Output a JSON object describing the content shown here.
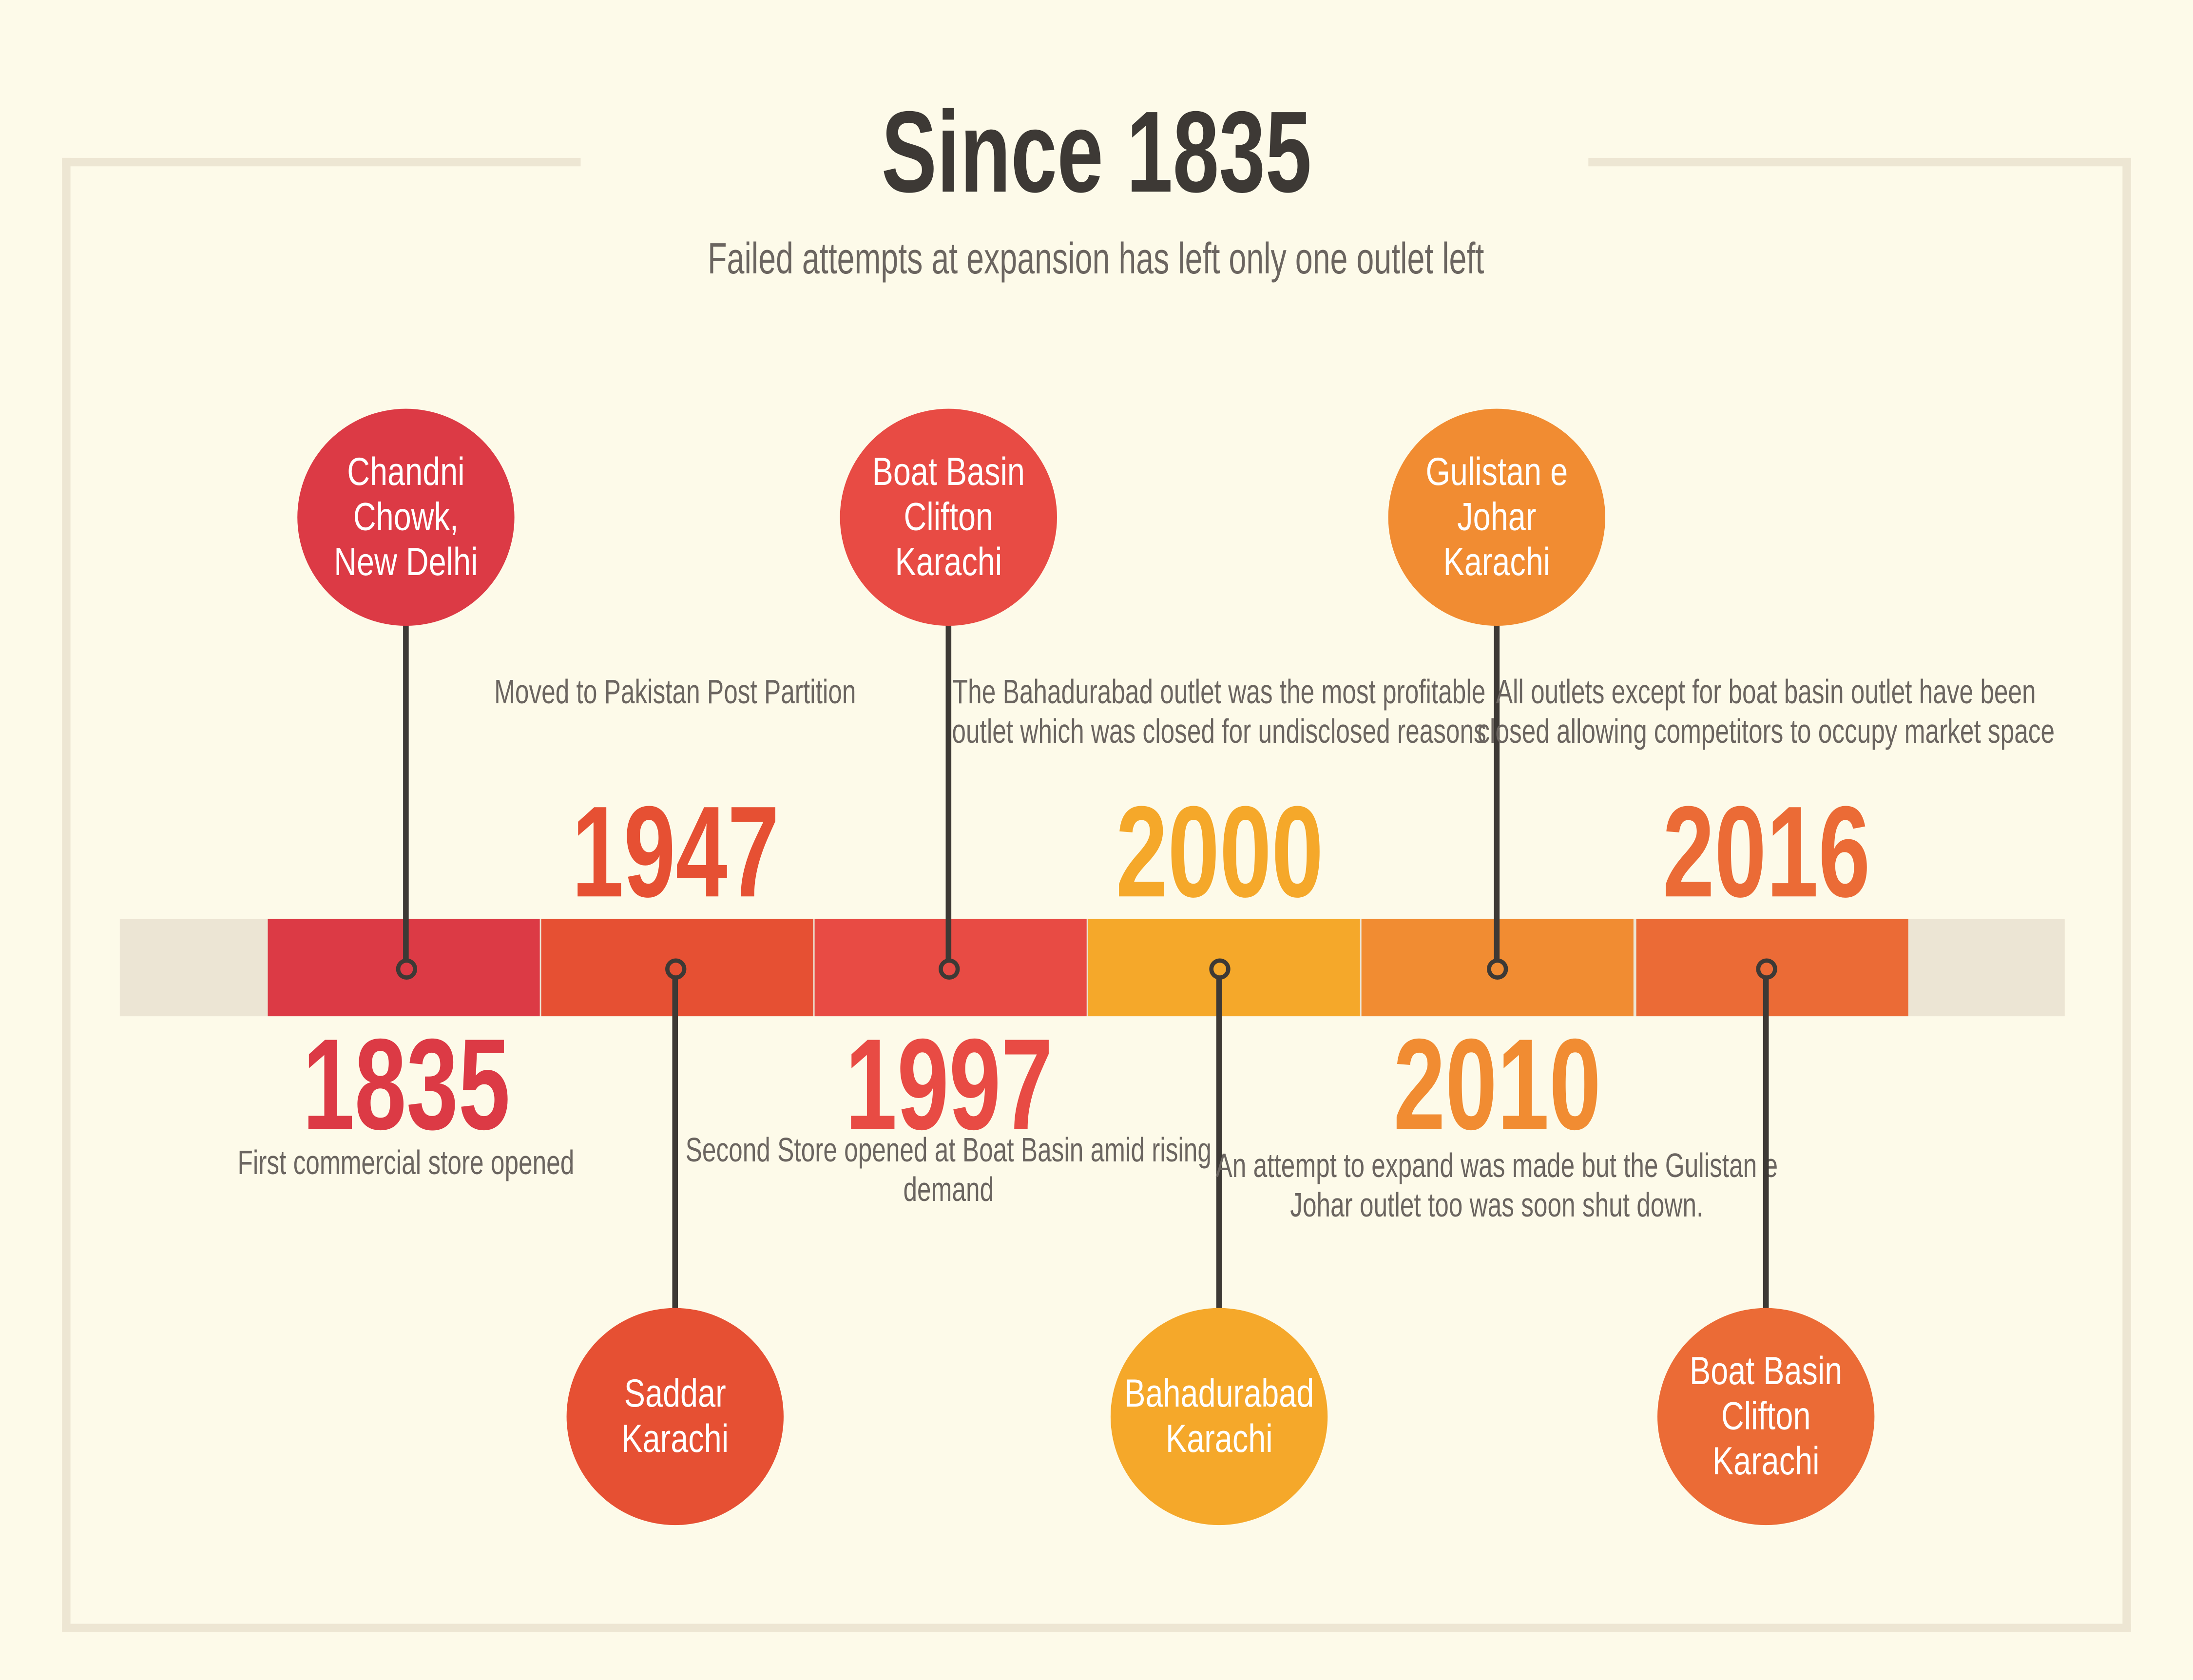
{
  "title": "Since 1835",
  "subtitle": "Failed attempts at expansion has left only one outlet left",
  "colors": {
    "background": "#fdfae9",
    "frame": "#ede6d3",
    "bar_track": "#ece5d4",
    "text_dark": "#3d3935",
    "text_muted": "#6b6560"
  },
  "events": [
    {
      "year": "1835",
      "location": "Chandni Chowk, New Delhi",
      "description": "First commercial store opened",
      "color": "#dc3a45"
    },
    {
      "year": "1947",
      "location": "Saddar Karachi",
      "description": "Moved to Pakistan Post Partition",
      "color": "#e65033"
    },
    {
      "year": "1997",
      "location": "Boat Basin Clifton Karachi",
      "description": "Second Store opened at Boat Basin amid rising demand",
      "color": "#e84b44"
    },
    {
      "year": "2000",
      "location": "Bahadurabad Karachi",
      "description": "The Bahadurabad outlet was the most profitable outlet which was closed for undisclosed reasons",
      "color": "#f5a82a"
    },
    {
      "year": "2010",
      "location": "Gulistan e Johar Karachi",
      "description": "An attempt to expand was made but the Gulistan e Johar outlet too was soon shut down.",
      "color": "#f18c32"
    },
    {
      "year": "2016",
      "location": "Boat Basin Clifton Karachi",
      "description": "All outlets except for boat basin outlet have been closed allowing competitors to occupy market space",
      "color": "#eb6b36"
    }
  ]
}
